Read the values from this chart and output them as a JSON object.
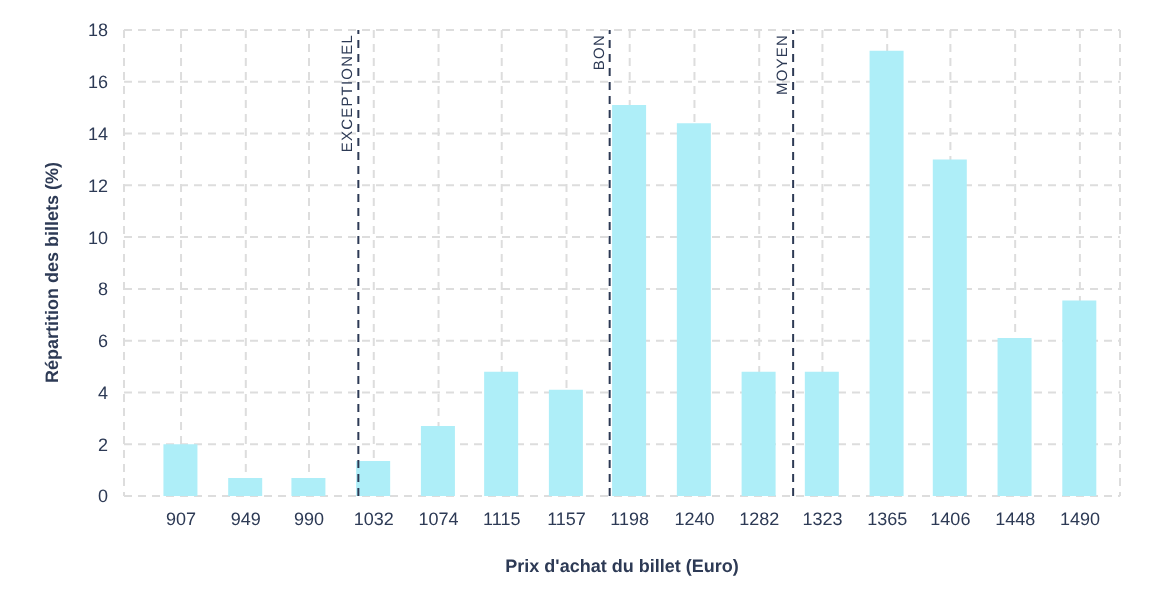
{
  "chart_data": {
    "type": "bar",
    "xlabel": "Prix d'achat du billet (Euro)",
    "ylabel": "Répartition des billets (%)",
    "x": [
      907,
      949,
      990,
      1032,
      1074,
      1115,
      1157,
      1198,
      1240,
      1282,
      1323,
      1365,
      1406,
      1448,
      1490
    ],
    "values": [
      2.0,
      0.7,
      0.7,
      1.35,
      2.7,
      4.8,
      4.1,
      15.1,
      14.4,
      4.8,
      4.8,
      17.2,
      13.0,
      6.1,
      7.55
    ],
    "color": "#aeeef8",
    "xlim": [
      870,
      1516
    ],
    "xticks": [
      907,
      949,
      990,
      1032,
      1074,
      1115,
      1157,
      1198,
      1240,
      1282,
      1323,
      1365,
      1406,
      1448,
      1490
    ],
    "ylim": [
      0,
      18
    ],
    "yticks": [
      0,
      2,
      4,
      6,
      8,
      10,
      12,
      14,
      16,
      18
    ],
    "grid": true,
    "ref_lines": [
      {
        "axis": "x",
        "value": 1022,
        "label": "EXCEPTIONEL",
        "line_style": "dashed",
        "color": "#2d3a55"
      },
      {
        "axis": "x",
        "value": 1185,
        "label": "BON",
        "line_style": "dashed",
        "color": "#2d3a55"
      },
      {
        "axis": "x",
        "value": 1304,
        "label": "MOYEN",
        "line_style": "dashed",
        "color": "#2d3a55"
      }
    ]
  }
}
